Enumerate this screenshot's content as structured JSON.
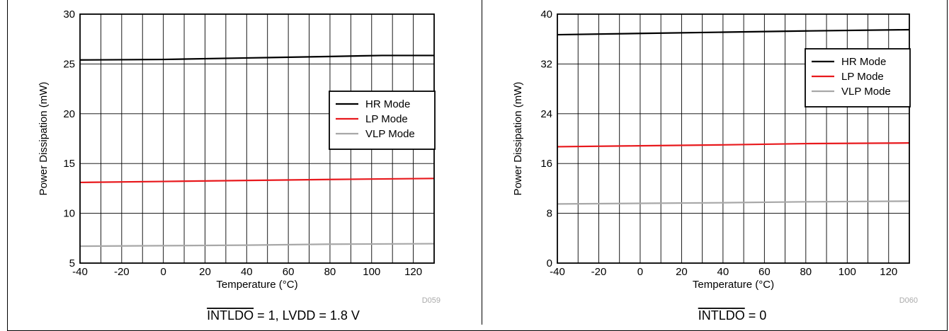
{
  "chart_data": [
    {
      "type": "line",
      "xlabel": "Temperature (°C)",
      "ylabel": "Power Dissipation (mW)",
      "xlim": [
        -40,
        130
      ],
      "ylim": [
        5,
        30
      ],
      "xticks": [
        -40,
        -20,
        0,
        20,
        40,
        60,
        80,
        100,
        120
      ],
      "yticks": [
        5,
        10,
        15,
        20,
        25,
        30
      ],
      "x_minor_step": 10,
      "grid": true,
      "legend_position": "center-right",
      "figure_code": "D059",
      "caption": {
        "overlined": "INTLDO",
        "rest": " = 1, LVDD = 1.8 V"
      },
      "series": [
        {
          "name": "HR Mode",
          "color": "#000000",
          "x": [
            -40,
            0,
            40,
            80,
            105,
            130
          ],
          "values": [
            25.4,
            25.45,
            25.6,
            25.75,
            25.85,
            25.85
          ]
        },
        {
          "name": "LP Mode",
          "color": "#e8191d",
          "x": [
            -40,
            0,
            40,
            80,
            130
          ],
          "values": [
            13.1,
            13.2,
            13.3,
            13.4,
            13.5
          ]
        },
        {
          "name": "VLP Mode",
          "color": "#a8a8a8",
          "x": [
            -40,
            0,
            40,
            80,
            130
          ],
          "values": [
            6.7,
            6.75,
            6.8,
            6.9,
            6.95
          ]
        }
      ]
    },
    {
      "type": "line",
      "xlabel": "Temperature (°C)",
      "ylabel": "Power Dissipation (mW)",
      "xlim": [
        -40,
        130
      ],
      "ylim": [
        0,
        40
      ],
      "xticks": [
        -40,
        -20,
        0,
        20,
        40,
        60,
        80,
        100,
        120
      ],
      "yticks": [
        0,
        8,
        16,
        24,
        32,
        40
      ],
      "x_minor_step": 10,
      "grid": true,
      "legend_position": "top-right",
      "figure_code": "D060",
      "caption": {
        "overlined": "INTLDO",
        "rest": " = 0"
      },
      "series": [
        {
          "name": "HR Mode",
          "color": "#000000",
          "x": [
            -40,
            0,
            40,
            80,
            130
          ],
          "values": [
            36.7,
            36.9,
            37.1,
            37.3,
            37.5
          ]
        },
        {
          "name": "LP Mode",
          "color": "#e8191d",
          "x": [
            -40,
            0,
            40,
            80,
            130
          ],
          "values": [
            18.7,
            18.85,
            19.0,
            19.2,
            19.3
          ]
        },
        {
          "name": "VLP Mode",
          "color": "#a8a8a8",
          "x": [
            -40,
            0,
            40,
            80,
            130
          ],
          "values": [
            9.5,
            9.6,
            9.7,
            9.85,
            9.95
          ]
        }
      ]
    }
  ]
}
